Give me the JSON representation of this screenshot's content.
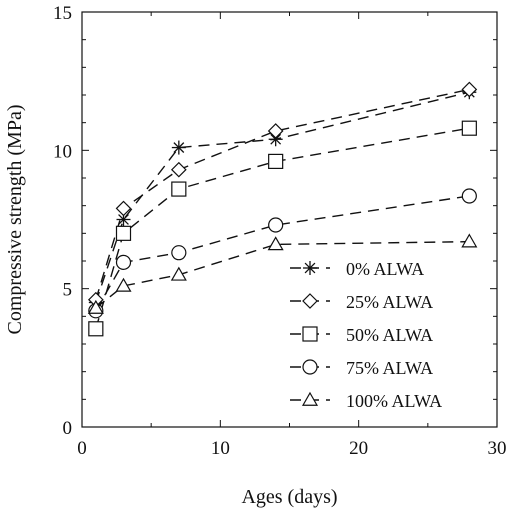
{
  "chart_data": {
    "type": "line",
    "title": "",
    "xlabel": "Ages (days)",
    "ylabel": "Compressive strength (MPa)",
    "xlim": [
      0,
      30
    ],
    "ylim": [
      0,
      15
    ],
    "xticks": [
      0,
      10,
      20,
      30
    ],
    "yticks": [
      0,
      5,
      10,
      15
    ],
    "grid": false,
    "legend_position": "lower-right",
    "line_style": "dashed",
    "colors": {
      "line": "#111111",
      "marker": "#111111"
    },
    "series": [
      {
        "name": "0% ALWA",
        "marker": "asterisk",
        "x": [
          1,
          3,
          7,
          14,
          28
        ],
        "y": [
          4.5,
          7.5,
          10.1,
          10.4,
          12.1
        ]
      },
      {
        "name": "25% ALWA",
        "marker": "diamond",
        "x": [
          1,
          3,
          7,
          14,
          28
        ],
        "y": [
          4.6,
          7.9,
          9.3,
          10.7,
          12.2
        ]
      },
      {
        "name": "50% ALWA",
        "marker": "square",
        "x": [
          1,
          3,
          7,
          14,
          28
        ],
        "y": [
          3.55,
          7.0,
          8.6,
          9.6,
          10.8
        ]
      },
      {
        "name": "75% ALWA",
        "marker": "circle",
        "x": [
          1,
          3,
          7,
          14,
          28
        ],
        "y": [
          4.2,
          5.95,
          6.3,
          7.3,
          8.35
        ]
      },
      {
        "name": "100% ALWA",
        "marker": "triangle",
        "x": [
          1,
          3,
          7,
          14,
          28
        ],
        "y": [
          4.3,
          5.1,
          5.5,
          6.6,
          6.7
        ]
      }
    ]
  }
}
